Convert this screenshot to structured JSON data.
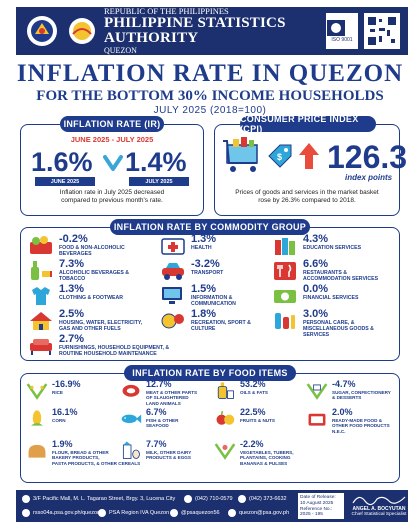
{
  "header": {
    "line1": "REPUBLIC OF THE PHILIPPINES",
    "line2": "PHILIPPINE STATISTICS AUTHORITY",
    "line3": "QUEZON",
    "iso_text": "ISO 9001"
  },
  "title": {
    "main": "INFLATION RATE IN QUEZON",
    "sub": "FOR THE BOTTOM 30% INCOME HOUSEHOLDS",
    "period": "JULY 2025 (2018=100)"
  },
  "inflation_rate": {
    "heading": "INFLATION RATE (IR)",
    "period": "JUNE 2025 - JULY 2025",
    "june_value": "1.6%",
    "july_value": "1.4%",
    "june_label": "JUNE 2025",
    "july_label": "JULY 2025",
    "note_line1": "Inflation rate in July 2025 decreased",
    "note_line2": "compared to previous month's rate."
  },
  "cpi": {
    "heading": "CONSUMER PRICE INDEX (CPI)",
    "value": "126.3",
    "unit": "index points",
    "note_line1": "Prices of goods and services in the market basket",
    "note_line2": "rose by 26.3% compared to 2018."
  },
  "commodity": {
    "heading": "INFLATION RATE BY COMMODITY GROUP",
    "items": [
      {
        "value": "-0.2%",
        "label1": "FOOD & NON-ALCOHOLIC",
        "label2": "BEVERAGES",
        "icon": "food-basket-icon"
      },
      {
        "value": "1.3%",
        "label1": "HEALTH",
        "label2": "",
        "icon": "health-kit-icon"
      },
      {
        "value": "4.3%",
        "label1": "EDUCATION SERVICES",
        "label2": "",
        "icon": "books-icon"
      },
      {
        "value": "7.3%",
        "label1": "ALCOHOLIC BEVERAGES &",
        "label2": "TOBACCO",
        "icon": "bottle-icon"
      },
      {
        "value": "-3.2%",
        "label1": "TRANSPORT",
        "label2": "",
        "icon": "car-icon"
      },
      {
        "value": "6.6%",
        "label1": "RESTAURANTS &",
        "label2": "ACCOMMODATION SERVICES",
        "icon": "restaurant-icon"
      },
      {
        "value": "1.3%",
        "label1": "CLOTHING & FOOTWEAR",
        "label2": "",
        "icon": "shirt-icon"
      },
      {
        "value": "1.5%",
        "label1": "INFORMATION &",
        "label2": "COMMUNICATION",
        "icon": "computer-icon"
      },
      {
        "value": "0.0%",
        "label1": "FINANCIAL SERVICES",
        "label2": "",
        "icon": "money-icon"
      },
      {
        "value": "2.5%",
        "label1": "HOUSING, WATER, ELECTRICITY,",
        "label2": "GAS AND OTHER FUELS",
        "icon": "house-icon"
      },
      {
        "value": "1.8%",
        "label1": "RECREATION, SPORT &",
        "label2": "CULTURE",
        "icon": "sports-icon"
      },
      {
        "value": "3.0%",
        "label1": "PERSONAL CARE, &",
        "label2": "MISCELLANEOUS GOODS &",
        "label3": "SERVICES",
        "icon": "personal-care-icon"
      },
      {
        "value": "2.7%",
        "label1": "FURNISHINGS, HOUSEHOLD EQUIPMENT, &",
        "label2": "ROUTINE HOUSEHOLD MAINTENANCE",
        "icon": "sofa-icon"
      }
    ]
  },
  "food": {
    "heading": "INFLATION RATE BY FOOD ITEMS",
    "items": [
      {
        "value": "-16.9%",
        "label1": "RICE",
        "label2": "",
        "label3": "",
        "icon": "rice-icon"
      },
      {
        "value": "12.7%",
        "label1": "MEAT & OTHER PARTS",
        "label2": "OF SLAUGHTERED",
        "label3": "LAND ANIMALS",
        "icon": "meat-icon"
      },
      {
        "value": "53.2%",
        "label1": "OILS & FATS",
        "label2": "",
        "label3": "",
        "icon": "oil-icon"
      },
      {
        "value": "-4.7%",
        "label1": "SUGAR, CONFECTIONERY",
        "label2": "& DESSERTS",
        "label3": "",
        "icon": "sugar-icon"
      },
      {
        "value": "16.1%",
        "label1": "CORN",
        "label2": "",
        "label3": "",
        "icon": "corn-icon"
      },
      {
        "value": "6.7%",
        "label1": "FISH & OTHER",
        "label2": "SEAFOOD",
        "label3": "",
        "icon": "fish-icon"
      },
      {
        "value": "22.5%",
        "label1": "FRUITS & NUTS",
        "label2": "",
        "label3": "",
        "icon": "fruit-icon"
      },
      {
        "value": "2.0%",
        "label1": "READY-MADE FOOD &",
        "label2": "OTHER FOOD PRODUCTS",
        "label3": "N.E.C.",
        "icon": "ready-food-icon"
      },
      {
        "value": "1.9%",
        "label1": "FLOUR, BREAD & OTHER",
        "label2": "BAKERY PRODUCTS,",
        "label3": "PASTA PRODUCTS, & OTHER CEREALS",
        "icon": "bread-icon"
      },
      {
        "value": "7.7%",
        "label1": "MILK, OTHER DAIRY",
        "label2": "PRODUCTS & EGGS",
        "label3": "",
        "icon": "milk-icon"
      },
      {
        "value": "-2.2%",
        "label1": "VEGETABLES, TUBERS,",
        "label2": "PLANTAINS, COOKING",
        "label3": "BANANAS & PULSES",
        "icon": "vegetable-icon"
      }
    ]
  },
  "footer": {
    "address": "3/F Pacific Mall, M. L. Tagarao Street, Brgy. 3, Lucena City",
    "phone1": "(042) 710-0579",
    "phone2": "(042) 373-6632",
    "web": "rsso04a.psa.gov.ph/quezon",
    "facebook": "PSA Region IVA Quezon",
    "twitter": "@psaquezon56",
    "email": "quezon@psa.gov.ph",
    "release_label": "Date of Release:",
    "release_date": "10 August 2025",
    "ref_label": "Reference No.:",
    "ref_no": "2025 - 195",
    "signatory_name": "ANGEL A. BOCYUTAN",
    "signatory_position": "Chief Statistical Specialist"
  },
  "colors": {
    "primary": "#1f3c8c",
    "dark": "#1c2f6e",
    "accent": "#d93832",
    "up_arrow": "#e94b3c",
    "down_arrow": "#3aa6d8"
  }
}
